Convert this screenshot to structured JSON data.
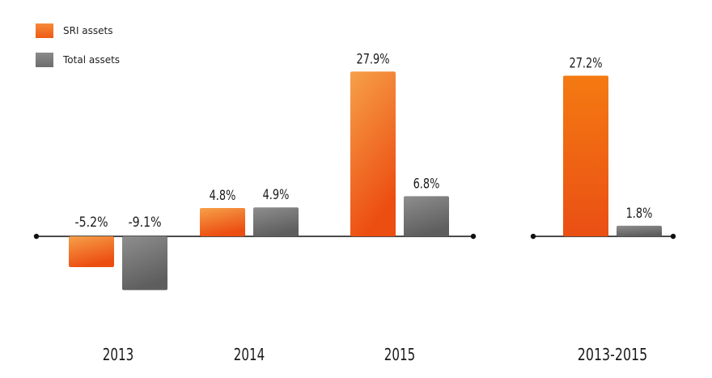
{
  "chart_data": {
    "type": "bar",
    "categories": [
      "2013",
      "2014",
      "2015",
      "2013-2015"
    ],
    "series": [
      {
        "name": "SRI assets",
        "values": [
          -5.2,
          4.8,
          27.9,
          27.2
        ],
        "color": "#f26a1b"
      },
      {
        "name": "Total assets",
        "values": [
          -9.1,
          4.9,
          6.8,
          1.8
        ],
        "color": "#7a7a7a"
      }
    ],
    "data_labels": [
      [
        "-5.2%",
        "4.8%",
        "27.9%",
        "27.2%"
      ],
      [
        "-9.1%",
        "4.9%",
        "6.8%",
        "1.8%"
      ]
    ],
    "legend_position": "top-left",
    "grid": false,
    "ylim": [
      -12,
      30
    ]
  }
}
